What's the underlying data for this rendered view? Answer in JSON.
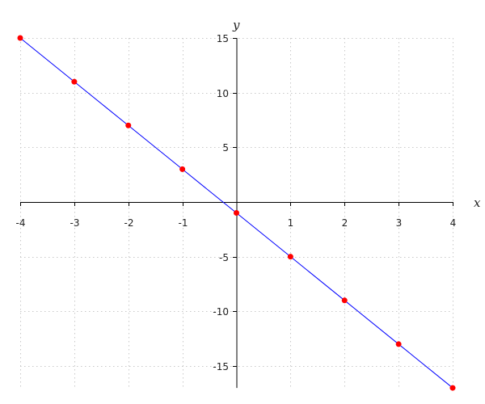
{
  "chart_data": {
    "type": "line",
    "title": "",
    "xlabel": "x",
    "ylabel": "y",
    "xlim": [
      -4,
      4
    ],
    "ylim": [
      -17,
      15
    ],
    "grid": true,
    "x_ticks": [
      -4,
      -3,
      -2,
      -1,
      1,
      2,
      3,
      4
    ],
    "y_ticks": [
      15,
      10,
      5,
      -5,
      -10,
      -15
    ],
    "x_tick_labels": [
      "-4",
      "-3",
      "-2",
      "-1",
      "1",
      "2",
      "3",
      "4"
    ],
    "y_tick_labels": [
      "15",
      "10",
      "5",
      "-5",
      "-10",
      "-15"
    ],
    "series": [
      {
        "x": [
          -4,
          -3,
          -2,
          -1,
          0,
          1,
          2,
          3,
          4
        ],
        "y": [
          15,
          11,
          7,
          3,
          -1,
          -5,
          -9,
          -13,
          -17
        ],
        "line_color": "#0000ff",
        "marker_color": "#ff0000"
      }
    ]
  }
}
